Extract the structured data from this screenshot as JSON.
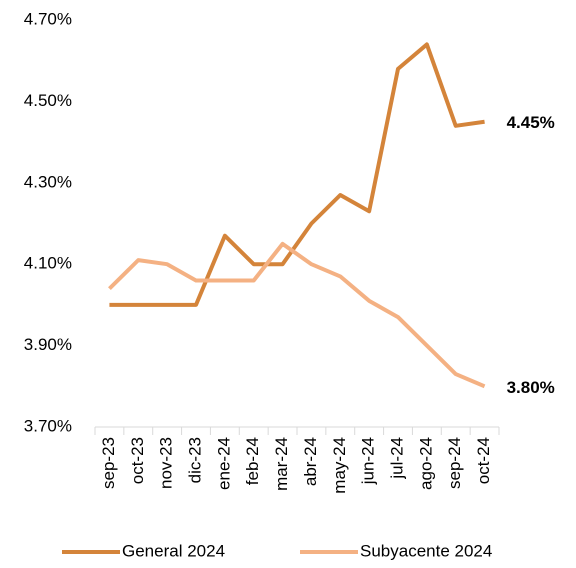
{
  "chart_data": {
    "type": "line",
    "categories": [
      "sep-23",
      "oct-23",
      "nov-23",
      "dic-23",
      "ene-24",
      "feb-24",
      "mar-24",
      "abr-24",
      "may-24",
      "jun-24",
      "jul-24",
      "ago-24",
      "sep-24",
      "oct-24"
    ],
    "series": [
      {
        "name": "General 2024",
        "color": "#D4843A",
        "values": [
          4.0,
          4.0,
          4.0,
          4.0,
          4.17,
          4.1,
          4.1,
          4.2,
          4.27,
          4.23,
          4.58,
          4.64,
          4.44,
          4.45
        ],
        "value_labels": [
          null,
          null,
          null,
          null,
          null,
          null,
          null,
          null,
          null,
          null,
          null,
          null,
          null,
          "4.45%"
        ]
      },
      {
        "name": "Subyacente 2024",
        "color": "#F4B183",
        "values": [
          4.04,
          4.11,
          4.1,
          4.06,
          4.06,
          4.06,
          4.15,
          4.1,
          4.07,
          4.01,
          3.97,
          3.9,
          3.83,
          3.8
        ],
        "value_labels": [
          null,
          null,
          null,
          null,
          null,
          null,
          null,
          null,
          null,
          null,
          null,
          null,
          null,
          "3.80%"
        ]
      }
    ],
    "ylim": [
      3.7,
      4.7
    ],
    "yticks": [
      {
        "value": 3.7,
        "label": "3.70%"
      },
      {
        "value": 3.9,
        "label": "3.90%"
      },
      {
        "value": 4.1,
        "label": "4.10%"
      },
      {
        "value": 4.3,
        "label": "4.30%"
      },
      {
        "value": 4.5,
        "label": "4.50%"
      },
      {
        "value": 4.7,
        "label": "4.70%"
      }
    ],
    "grid": false,
    "legend": "bottom"
  }
}
